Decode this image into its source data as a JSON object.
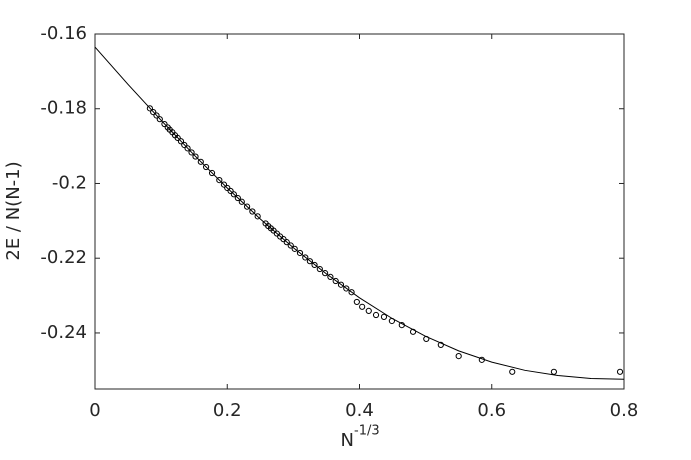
{
  "chart_data": {
    "type": "scatter",
    "ylabel": "2E / N(N-1)",
    "xlabel": "N",
    "xlabel_superscript": "-1/3",
    "xlim": [
      0,
      0.8
    ],
    "ylim": [
      -0.255,
      -0.16
    ],
    "xticks": [
      0,
      0.2,
      0.4,
      0.6,
      0.8
    ],
    "yticks": [
      -0.16,
      -0.18,
      -0.2,
      -0.22,
      -0.24
    ],
    "box": true,
    "series": [
      {
        "type": "scatter",
        "color": "#000000",
        "x": [
          0.083,
          0.088,
          0.093,
          0.098,
          0.105,
          0.11,
          0.113,
          0.117,
          0.121,
          0.125,
          0.13,
          0.135,
          0.14,
          0.146,
          0.152,
          0.16,
          0.168,
          0.177,
          0.188,
          0.195,
          0.2,
          0.205,
          0.21,
          0.216,
          0.222,
          0.23,
          0.238,
          0.246,
          0.258,
          0.262,
          0.266,
          0.27,
          0.275,
          0.28,
          0.285,
          0.29,
          0.296,
          0.302,
          0.31,
          0.318,
          0.325,
          0.332,
          0.34,
          0.348,
          0.356,
          0.364,
          0.372,
          0.38,
          0.388,
          0.396,
          0.404,
          0.414,
          0.425,
          0.437,
          0.449,
          0.464,
          0.481,
          0.501,
          0.523,
          0.55,
          0.585,
          0.631,
          0.694,
          0.794
        ],
        "values": [
          -0.1799,
          -0.1809,
          -0.1818,
          -0.1828,
          -0.1841,
          -0.185,
          -0.1856,
          -0.1863,
          -0.1871,
          -0.1878,
          -0.1887,
          -0.1897,
          -0.1906,
          -0.1917,
          -0.1928,
          -0.1942,
          -0.1956,
          -0.1972,
          -0.1991,
          -0.2003,
          -0.2012,
          -0.202,
          -0.2029,
          -0.2039,
          -0.2049,
          -0.2062,
          -0.2075,
          -0.2088,
          -0.2107,
          -0.2114,
          -0.212,
          -0.2126,
          -0.2134,
          -0.2142,
          -0.2149,
          -0.2157,
          -0.2166,
          -0.2175,
          -0.2186,
          -0.2198,
          -0.2208,
          -0.2218,
          -0.2229,
          -0.224,
          -0.225,
          -0.2261,
          -0.2271,
          -0.2281,
          -0.2291,
          -0.2317,
          -0.233,
          -0.2341,
          -0.2352,
          -0.2357,
          -0.2368,
          -0.2379,
          -0.2397,
          -0.2416,
          -0.2432,
          -0.2462,
          -0.2472,
          -0.2504,
          -0.2504,
          -0.2504
        ]
      },
      {
        "type": "line",
        "color": "#000000",
        "x": [
          0,
          0.05,
          0.1,
          0.15,
          0.2,
          0.25,
          0.3,
          0.35,
          0.4,
          0.45,
          0.5,
          0.55,
          0.6,
          0.65,
          0.7,
          0.75,
          0.8
        ],
        "values": [
          -0.1635,
          -0.1735,
          -0.1831,
          -0.1924,
          -0.2012,
          -0.2095,
          -0.2172,
          -0.2242,
          -0.2306,
          -0.2362,
          -0.2409,
          -0.2448,
          -0.2478,
          -0.25,
          -0.2514,
          -0.2522,
          -0.2524
        ]
      }
    ]
  }
}
